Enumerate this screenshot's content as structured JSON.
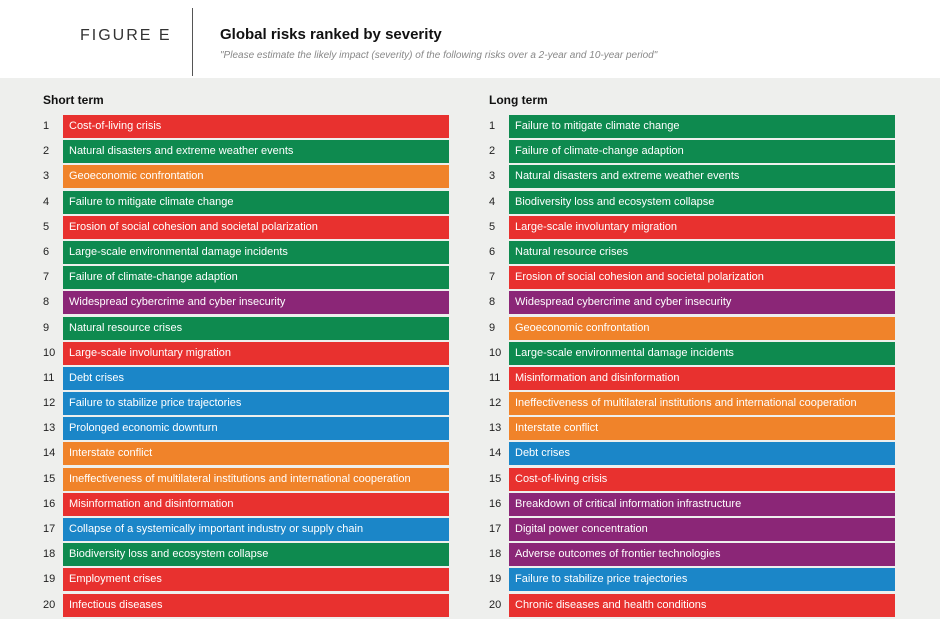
{
  "header": {
    "figure_label": "FIGURE E",
    "title": "Global risks ranked by severity",
    "subtitle": "\"Please estimate the likely impact (severity) of the following risks over a 2-year and 10-year period\""
  },
  "colors": {
    "economic": "#1b86c8",
    "environmental": "#0e8a4f",
    "geopolitical": "#f0832a",
    "societal": "#e8312f",
    "technological": "#8b2677"
  },
  "short_term": {
    "title": "Short term",
    "items": [
      {
        "rank": "1",
        "label": "Cost-of-living crisis",
        "category": "societal"
      },
      {
        "rank": "2",
        "label": "Natural disasters and extreme weather events",
        "category": "environmental"
      },
      {
        "rank": "3",
        "label": "Geoeconomic confrontation",
        "category": "geopolitical"
      },
      {
        "rank": "4",
        "label": "Failure to mitigate climate change",
        "category": "environmental"
      },
      {
        "rank": "5",
        "label": "Erosion of social cohesion and societal polarization",
        "category": "societal"
      },
      {
        "rank": "6",
        "label": "Large-scale environmental damage incidents",
        "category": "environmental"
      },
      {
        "rank": "7",
        "label": "Failure of climate-change adaption",
        "category": "environmental"
      },
      {
        "rank": "8",
        "label": "Widespread cybercrime and cyber insecurity",
        "category": "technological"
      },
      {
        "rank": "9",
        "label": "Natural resource crises",
        "category": "environmental"
      },
      {
        "rank": "10",
        "label": "Large-scale involuntary migration",
        "category": "societal"
      },
      {
        "rank": "11",
        "label": "Debt crises",
        "category": "economic"
      },
      {
        "rank": "12",
        "label": "Failure to stabilize price trajectories",
        "category": "economic"
      },
      {
        "rank": "13",
        "label": "Prolonged economic downturn",
        "category": "economic"
      },
      {
        "rank": "14",
        "label": "Interstate conflict",
        "category": "geopolitical"
      },
      {
        "rank": "15",
        "label": "Ineffectiveness of multilateral institutions and international cooperation",
        "category": "geopolitical"
      },
      {
        "rank": "16",
        "label": "Misinformation and disinformation",
        "category": "societal"
      },
      {
        "rank": "17",
        "label": "Collapse of a systemically important industry or supply chain",
        "category": "economic"
      },
      {
        "rank": "18",
        "label": "Biodiversity loss and ecosystem collapse",
        "category": "environmental"
      },
      {
        "rank": "19",
        "label": "Employment crises",
        "category": "societal"
      },
      {
        "rank": "20",
        "label": "Infectious diseases",
        "category": "societal"
      }
    ]
  },
  "long_term": {
    "title": "Long term",
    "items": [
      {
        "rank": "1",
        "label": "Failure to mitigate climate change",
        "category": "environmental"
      },
      {
        "rank": "2",
        "label": "Failure of climate-change adaption",
        "category": "environmental"
      },
      {
        "rank": "3",
        "label": "Natural disasters and extreme weather events",
        "category": "environmental"
      },
      {
        "rank": "4",
        "label": "Biodiversity loss and ecosystem collapse",
        "category": "environmental"
      },
      {
        "rank": "5",
        "label": "Large-scale involuntary migration",
        "category": "societal"
      },
      {
        "rank": "6",
        "label": "Natural resource crises",
        "category": "environmental"
      },
      {
        "rank": "7",
        "label": "Erosion of social cohesion and societal polarization",
        "category": "societal"
      },
      {
        "rank": "8",
        "label": "Widespread cybercrime and cyber insecurity",
        "category": "technological"
      },
      {
        "rank": "9",
        "label": "Geoeconomic confrontation",
        "category": "geopolitical"
      },
      {
        "rank": "10",
        "label": "Large-scale environmental damage incidents",
        "category": "environmental"
      },
      {
        "rank": "11",
        "label": "Misinformation and disinformation",
        "category": "societal"
      },
      {
        "rank": "12",
        "label": "Ineffectiveness of multilateral institutions and international cooperation",
        "category": "geopolitical"
      },
      {
        "rank": "13",
        "label": "Interstate conflict",
        "category": "geopolitical"
      },
      {
        "rank": "14",
        "label": "Debt crises",
        "category": "economic"
      },
      {
        "rank": "15",
        "label": "Cost-of-living crisis",
        "category": "societal"
      },
      {
        "rank": "16",
        "label": "Breakdown of critical information infrastructure",
        "category": "technological"
      },
      {
        "rank": "17",
        "label": "Digital power concentration",
        "category": "technological"
      },
      {
        "rank": "18",
        "label": "Adverse outcomes of frontier technologies",
        "category": "technological"
      },
      {
        "rank": "19",
        "label": "Failure to stabilize price trajectories",
        "category": "economic"
      },
      {
        "rank": "20",
        "label": "Chronic diseases and health conditions",
        "category": "societal"
      }
    ]
  }
}
